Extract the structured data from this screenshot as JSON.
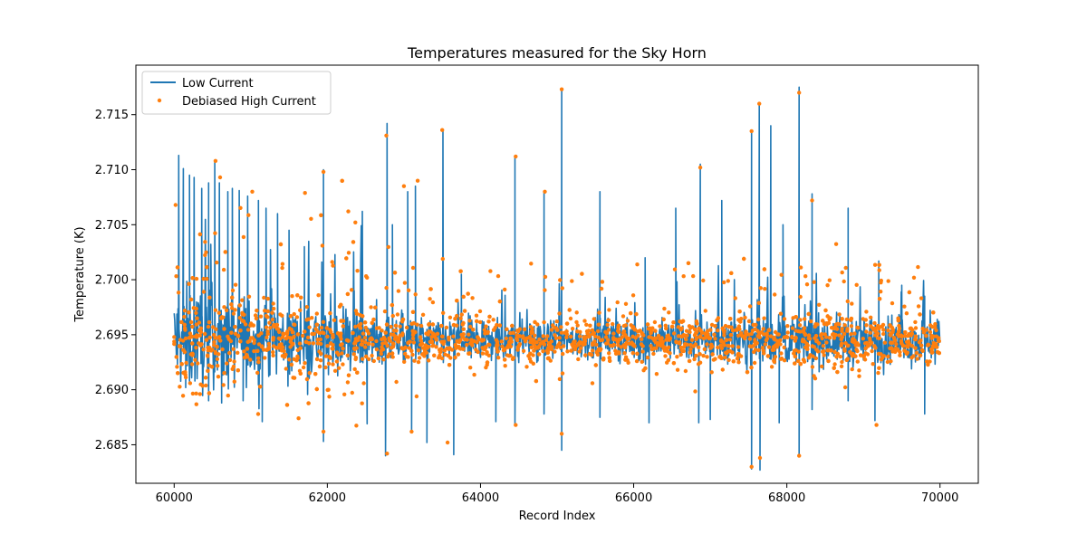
{
  "chart_data": {
    "type": "line",
    "title": "Temperatures measured for the Sky Horn",
    "xlabel": "Record Index",
    "ylabel": "Temperature (K)",
    "xlim": [
      59500,
      70500
    ],
    "ylim": [
      2.6815,
      2.7195
    ],
    "xticks": [
      60000,
      62000,
      64000,
      66000,
      68000,
      70000
    ],
    "xtick_labels": [
      "60000",
      "62000",
      "64000",
      "66000",
      "68000",
      "70000"
    ],
    "yticks": [
      2.685,
      2.69,
      2.695,
      2.7,
      2.705,
      2.71,
      2.715
    ],
    "ytick_labels": [
      "2.685",
      "2.690",
      "2.695",
      "2.700",
      "2.705",
      "2.710",
      "2.715"
    ],
    "grid": false,
    "legend_position": "top-left",
    "x_range": [
      60000,
      70000
    ],
    "baseline": 2.6945,
    "series": [
      {
        "name": "Low Current",
        "kind": "line",
        "color": "#1f77b4",
        "spikes": [
          [
            60060,
            2.7113
          ],
          [
            60120,
            2.7101
          ],
          [
            60200,
            2.7095
          ],
          [
            60260,
            2.7093
          ],
          [
            60360,
            2.7083
          ],
          [
            60450,
            2.7088
          ],
          [
            60530,
            2.7107
          ],
          [
            60590,
            2.7088
          ],
          [
            60700,
            2.708
          ],
          [
            60760,
            2.7083
          ],
          [
            60850,
            2.7081
          ],
          [
            60960,
            2.7076
          ],
          [
            61100,
            2.7072
          ],
          [
            61200,
            2.7065
          ],
          [
            61350,
            2.706
          ],
          [
            61500,
            2.7045
          ],
          [
            61700,
            2.703
          ],
          [
            61950,
            2.71
          ],
          [
            62100,
            2.701
          ],
          [
            62350,
            2.699
          ],
          [
            62780,
            2.7142
          ],
          [
            62850,
            2.705
          ],
          [
            63050,
            2.708
          ],
          [
            63150,
            2.7085
          ],
          [
            63510,
            2.7136
          ],
          [
            63750,
            2.7005
          ],
          [
            64450,
            2.7112
          ],
          [
            64830,
            2.708
          ],
          [
            65060,
            2.7173
          ],
          [
            65560,
            2.708
          ],
          [
            66150,
            2.702
          ],
          [
            66550,
            2.7065
          ],
          [
            66870,
            2.7105
          ],
          [
            67150,
            2.7072
          ],
          [
            67540,
            2.7135
          ],
          [
            67640,
            2.716
          ],
          [
            67790,
            2.714
          ],
          [
            67950,
            2.705
          ],
          [
            68160,
            2.7175
          ],
          [
            68330,
            2.7078
          ],
          [
            68800,
            2.7065
          ],
          [
            69200,
            2.7017
          ],
          [
            69500,
            2.6995
          ],
          [
            69800,
            2.6985
          ]
        ],
        "dips": [
          [
            60150,
            2.6902
          ],
          [
            60450,
            2.689
          ],
          [
            60620,
            2.6888
          ],
          [
            60900,
            2.689
          ],
          [
            61150,
            2.6871
          ],
          [
            61950,
            2.6853
          ],
          [
            62520,
            2.6869
          ],
          [
            62760,
            2.684
          ],
          [
            63100,
            2.6862
          ],
          [
            63300,
            2.6852
          ],
          [
            63650,
            2.6841
          ],
          [
            64200,
            2.6871
          ],
          [
            64450,
            2.6868
          ],
          [
            64830,
            2.6878
          ],
          [
            65060,
            2.6845
          ],
          [
            65560,
            2.6875
          ],
          [
            66200,
            2.687
          ],
          [
            66850,
            2.687
          ],
          [
            67000,
            2.6873
          ],
          [
            67540,
            2.6828
          ],
          [
            67650,
            2.6827
          ],
          [
            67900,
            2.687
          ],
          [
            68160,
            2.684
          ],
          [
            68330,
            2.6882
          ],
          [
            68800,
            2.689
          ],
          [
            69150,
            2.6872
          ],
          [
            69800,
            2.6878
          ]
        ]
      },
      {
        "name": "Debiased High Current",
        "kind": "scatter",
        "color": "#ff7f0e",
        "highlights": [
          [
            60540,
            2.7108
          ],
          [
            60600,
            2.7093
          ],
          [
            61020,
            2.708
          ],
          [
            61950,
            2.7098
          ],
          [
            62770,
            2.7131
          ],
          [
            63500,
            2.7136
          ],
          [
            63000,
            2.7085
          ],
          [
            63180,
            2.709
          ],
          [
            64460,
            2.7112
          ],
          [
            64840,
            2.708
          ],
          [
            65060,
            2.7173
          ],
          [
            66870,
            2.7102
          ],
          [
            67540,
            2.7135
          ],
          [
            67640,
            2.716
          ],
          [
            68160,
            2.717
          ],
          [
            68330,
            2.7072
          ],
          [
            62780,
            2.6842
          ],
          [
            63100,
            2.6862
          ],
          [
            63570,
            2.6852
          ],
          [
            64460,
            2.6868
          ],
          [
            65060,
            2.686
          ],
          [
            67540,
            2.683
          ],
          [
            67650,
            2.6838
          ],
          [
            68160,
            2.684
          ],
          [
            69170,
            2.6868
          ],
          [
            61950,
            2.6862
          ]
        ]
      }
    ]
  }
}
